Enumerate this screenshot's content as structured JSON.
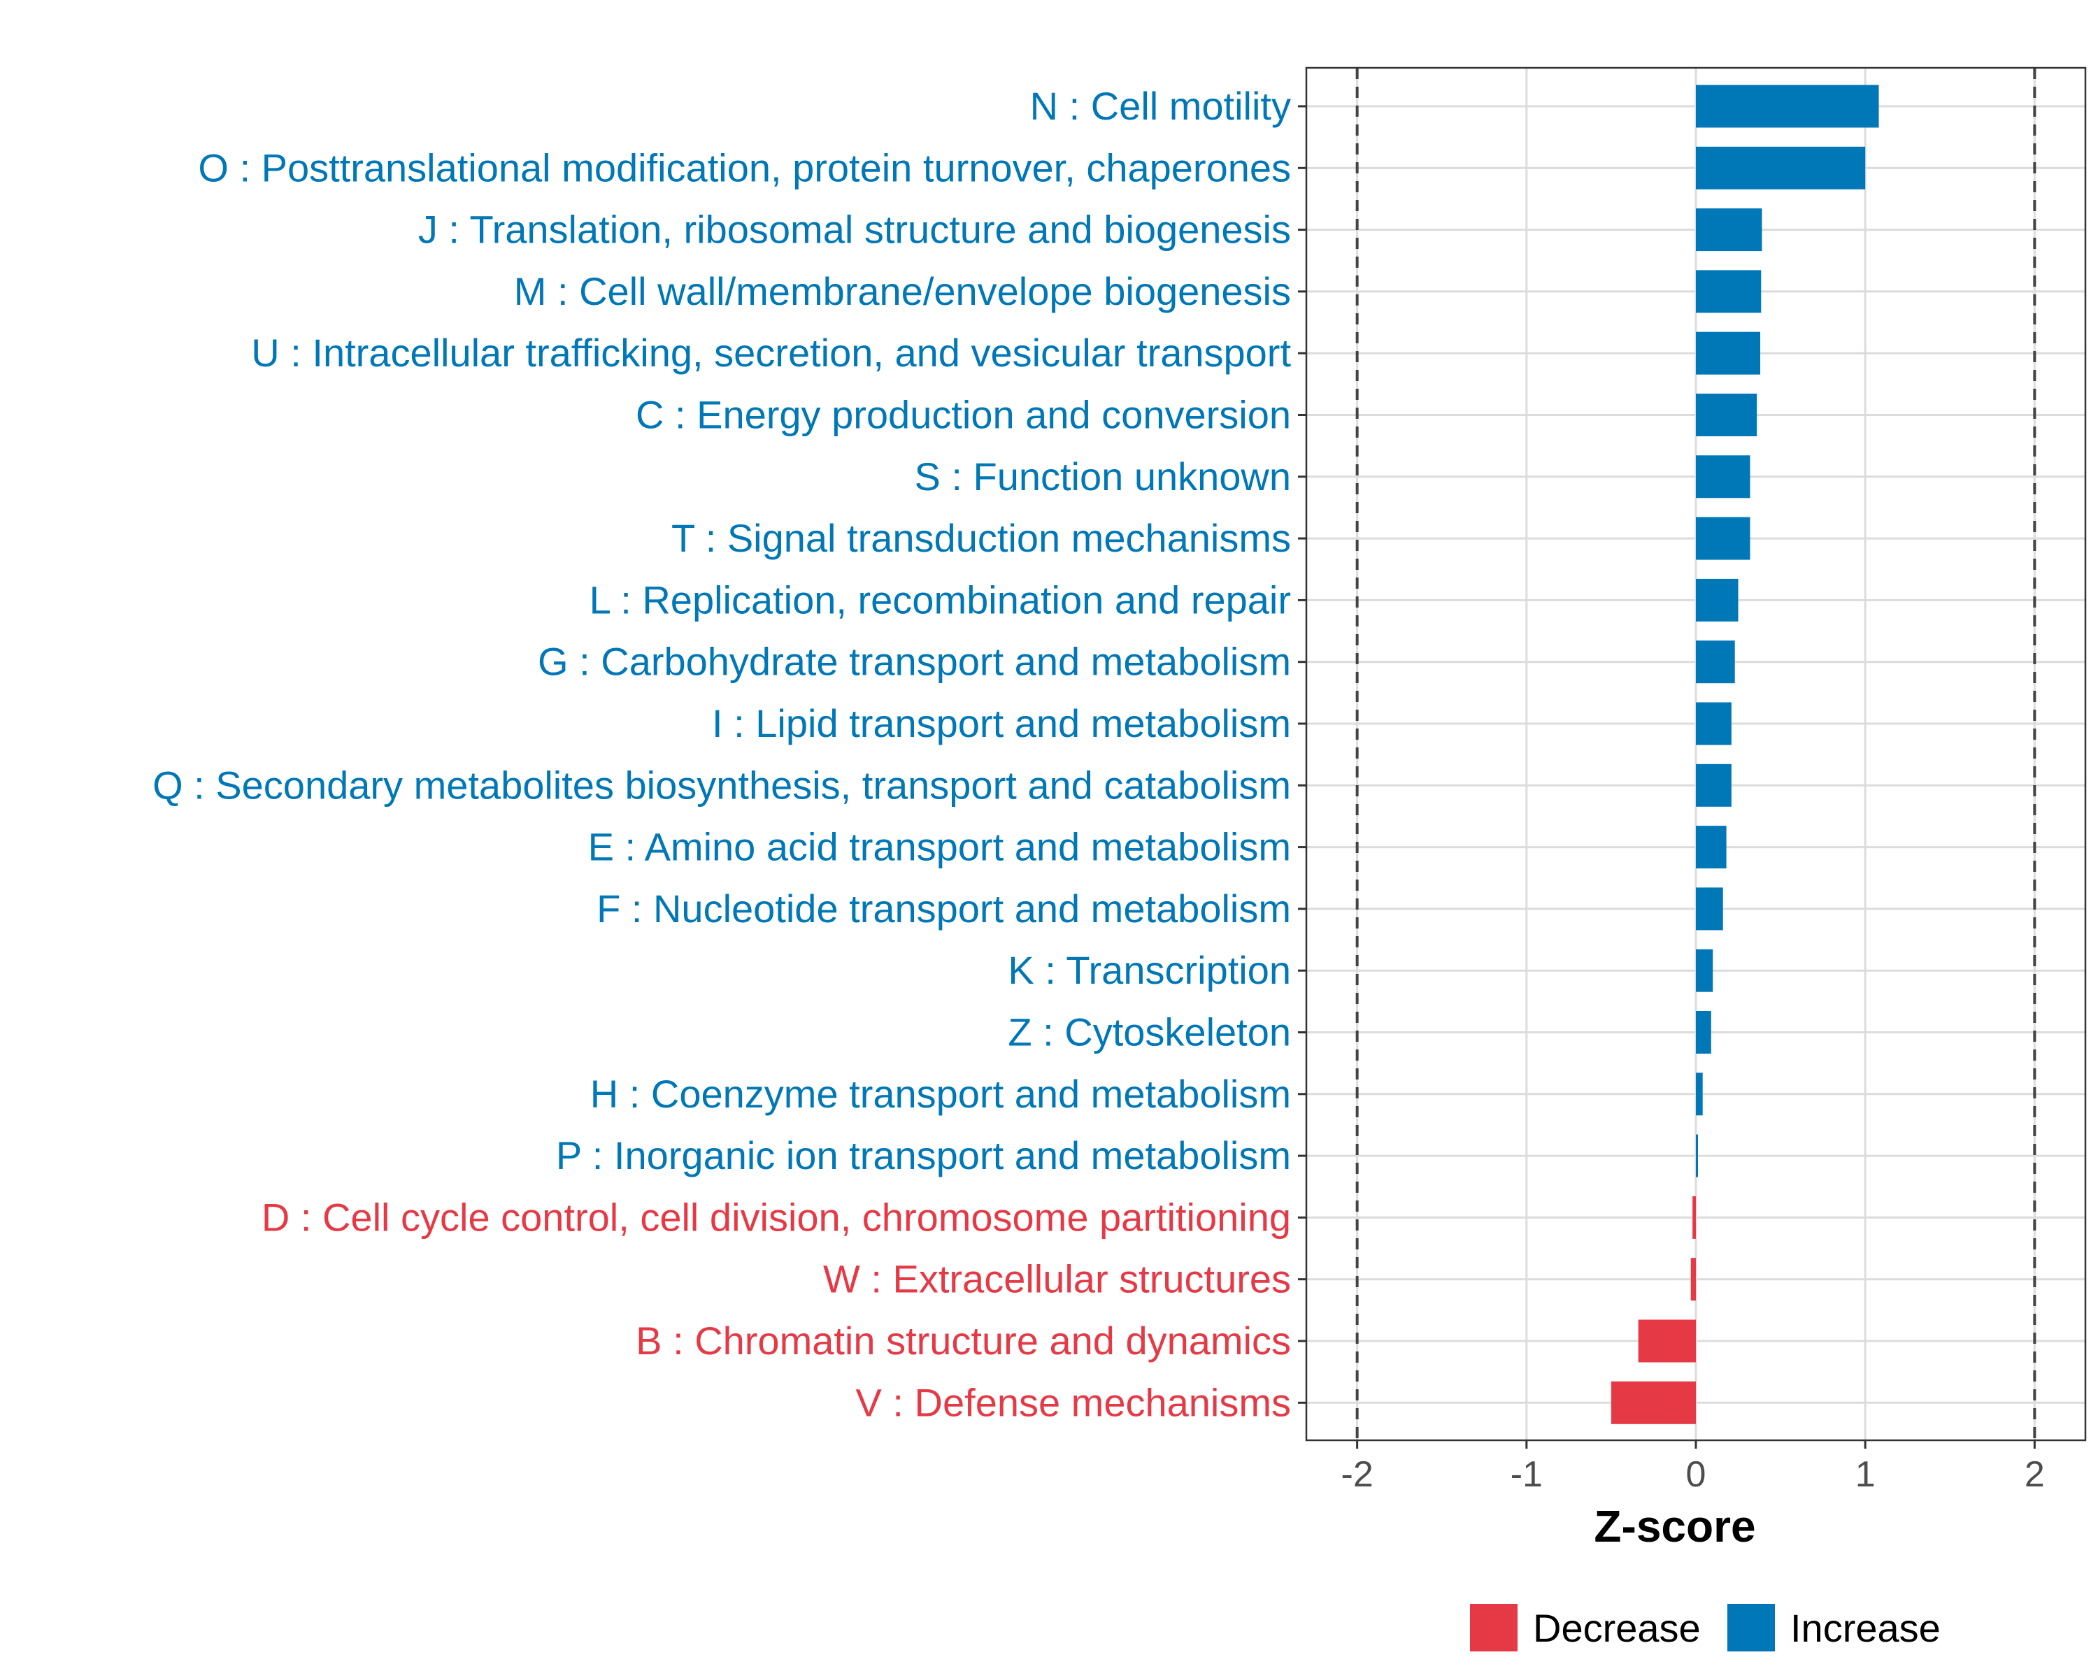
{
  "chart_data": {
    "type": "bar",
    "orientation": "horizontal",
    "xlabel": "Z-score",
    "ylabel": "",
    "xlim": [
      -2.3,
      2.3
    ],
    "xticks": [
      -2,
      -1,
      0,
      1,
      2
    ],
    "xtick_labels": [
      "-2",
      "-1",
      "0",
      "1",
      "2"
    ],
    "reference_lines": [
      -2,
      2
    ],
    "grid": true,
    "legend_position": "bottom",
    "categories": [
      "N : Cell motility",
      "O : Posttranslational modification, protein turnover, chaperones",
      "J : Translation, ribosomal structure and biogenesis",
      "M : Cell wall/membrane/envelope biogenesis",
      "U : Intracellular trafficking, secretion, and vesicular transport",
      "C : Energy production and conversion",
      "S : Function unknown",
      "T : Signal transduction mechanisms",
      "L : Replication, recombination and repair",
      "G : Carbohydrate transport and metabolism",
      "I : Lipid transport and metabolism",
      "Q : Secondary metabolites biosynthesis, transport and catabolism",
      "E : Amino acid transport and metabolism",
      "F : Nucleotide transport and metabolism",
      "K : Transcription",
      "Z : Cytoskeleton",
      "H : Coenzyme transport and metabolism",
      "P : Inorganic ion transport and metabolism",
      "D : Cell cycle control, cell division, chromosome partitioning",
      "W : Extracellular structures",
      "B : Chromatin structure and dynamics",
      "V : Defense mechanisms"
    ],
    "values": [
      1.08,
      1.0,
      0.39,
      0.385,
      0.38,
      0.36,
      0.32,
      0.32,
      0.25,
      0.23,
      0.21,
      0.21,
      0.18,
      0.16,
      0.1,
      0.09,
      0.04,
      0.01,
      -0.02,
      -0.03,
      -0.34,
      -0.5
    ],
    "groups": [
      "Increase",
      "Increase",
      "Increase",
      "Increase",
      "Increase",
      "Increase",
      "Increase",
      "Increase",
      "Increase",
      "Increase",
      "Increase",
      "Increase",
      "Increase",
      "Increase",
      "Increase",
      "Increase",
      "Increase",
      "Increase",
      "Decrease",
      "Decrease",
      "Decrease",
      "Decrease"
    ],
    "legend": [
      {
        "name": "Decrease",
        "color": "#e63946"
      },
      {
        "name": "Increase",
        "color": "#0077b6"
      }
    ]
  }
}
